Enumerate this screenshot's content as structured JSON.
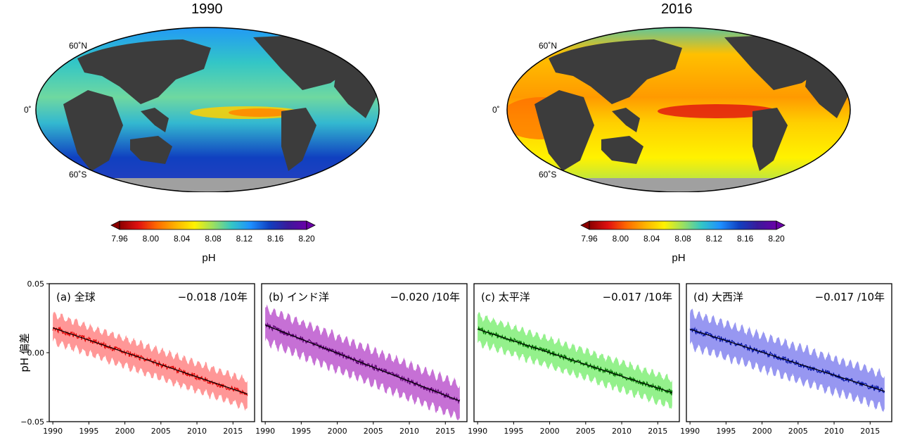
{
  "maps": [
    {
      "title": "1990",
      "lat_labels": [
        "60˚N",
        "0˚",
        "60˚S"
      ]
    },
    {
      "title": "2016",
      "lat_labels": [
        "60˚N",
        "0˚",
        "60˚S"
      ]
    }
  ],
  "colorbar": {
    "ticks": [
      "7.96",
      "8.00",
      "8.04",
      "8.08",
      "8.12",
      "8.16",
      "8.20"
    ],
    "label": "pH",
    "colors": [
      "#8b0000",
      "#e01010",
      "#ff6a00",
      "#ffb300",
      "#fff200",
      "#9be060",
      "#33c6c6",
      "#1e90ff",
      "#1040c0",
      "#3a1a9a",
      "#6a00a8"
    ]
  },
  "chart_data": [
    {
      "type": "line",
      "label": "(a) 全球",
      "trend_text": "−0.018 /10年",
      "color": "#e00000",
      "band_color": "#ff8c8c",
      "ylabel": "pH 偏差",
      "ylim": [
        -0.05,
        0.05
      ],
      "y_ticks": [
        "0.05",
        "0.00",
        "−0.05"
      ],
      "x_ticks": [
        "1990",
        "1995",
        "2000",
        "2005",
        "2010",
        "2015"
      ],
      "xlim": [
        1989.5,
        2018
      ],
      "series": [
        {
          "x": [
            1990,
            2017
          ],
          "values": [
            0.018,
            -0.03
          ]
        }
      ],
      "band_halfwidth": 0.008
    },
    {
      "type": "line",
      "label": "(b) インド洋",
      "trend_text": "−0.020 /10年",
      "color": "#5a0070",
      "band_color": "#c060d0",
      "ylim": [
        -0.05,
        0.05
      ],
      "x_ticks": [
        "1990",
        "1995",
        "2000",
        "2005",
        "2010",
        "2015"
      ],
      "xlim": [
        1989.5,
        2018
      ],
      "series": [
        {
          "x": [
            1990,
            2017
          ],
          "values": [
            0.02,
            -0.035
          ]
        }
      ],
      "band_halfwidth": 0.01
    },
    {
      "type": "line",
      "label": "(c) 太平洋",
      "trend_text": "−0.017 /10年",
      "color": "#007000",
      "band_color": "#88f080",
      "ylim": [
        -0.05,
        0.05
      ],
      "x_ticks": [
        "1990",
        "1995",
        "2000",
        "2005",
        "2010",
        "2015"
      ],
      "xlim": [
        1989.5,
        2018
      ],
      "series": [
        {
          "x": [
            1990,
            2017
          ],
          "values": [
            0.017,
            -0.029
          ]
        }
      ],
      "band_halfwidth": 0.008
    },
    {
      "type": "line",
      "label": "(d) 大西洋",
      "trend_text": "−0.017 /10年",
      "color": "#0010a0",
      "band_color": "#8c8cf0",
      "ylim": [
        -0.05,
        0.05
      ],
      "x_ticks": [
        "1990",
        "1995",
        "2000",
        "2005",
        "2010",
        "2015"
      ],
      "xlim": [
        1989.5,
        2018
      ],
      "series": [
        {
          "x": [
            1990,
            2017
          ],
          "values": [
            0.017,
            -0.028
          ]
        }
      ],
      "band_halfwidth": 0.01
    }
  ]
}
